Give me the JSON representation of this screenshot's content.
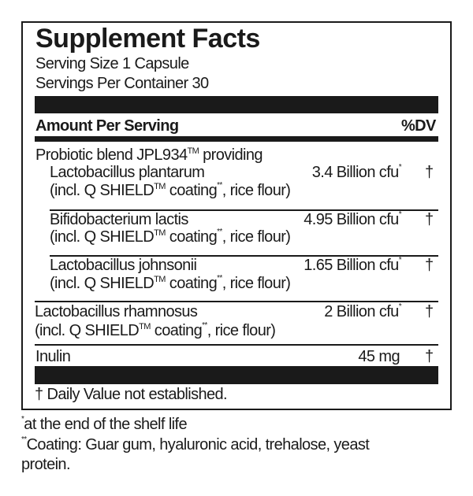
{
  "title": "Supplement Facts",
  "serving_size": "Serving Size 1 Capsule",
  "servings_per_container": "Servings Per Container 30",
  "header": {
    "amount": "Amount Per Serving",
    "dv": "%DV"
  },
  "blend": {
    "name": "Probiotic blend JPL934",
    "tm": "TM",
    "suffix": " providing"
  },
  "rows": [
    {
      "name": "Lactobacillus plantarum",
      "amount": "3.4 Billion cfu",
      "amount_mark": "*",
      "dv": "†",
      "sub_a": "(incl. Q SHIELD",
      "sub_tm": "TM",
      "sub_b": " coating",
      "sub_mark": "**",
      "sub_c": ", rice flour)"
    },
    {
      "name": "Bifidobacterium lactis",
      "amount": "4.95 Billion cfu",
      "amount_mark": "*",
      "dv": "†",
      "sub_a": "(incl. Q SHIELD",
      "sub_tm": "TM",
      "sub_b": " coating",
      "sub_mark": "**",
      "sub_c": ", rice flour)"
    },
    {
      "name": "Lactobacillus johnsonii",
      "amount": "1.65 Billion cfu",
      "amount_mark": "*",
      "dv": "†",
      "sub_a": "(incl. Q SHIELD",
      "sub_tm": "TM",
      "sub_b": " coating",
      "sub_mark": "**",
      "sub_c": ", rice flour)"
    },
    {
      "name": "Lactobacillus rhamnosus",
      "amount": "2 Billion cfu",
      "amount_mark": "*",
      "dv": "†",
      "sub_a": "(incl. Q SHIELD",
      "sub_tm": "TM",
      "sub_b": " coating",
      "sub_mark": "**",
      "sub_c": ", rice flour)"
    },
    {
      "name": "Inulin",
      "amount": "45 mg",
      "dv": "†"
    }
  ],
  "dv_note": "† Daily Value not established.",
  "footnotes": [
    {
      "mark": "*",
      "text": "at the end of the shelf life"
    },
    {
      "mark": "**",
      "text": "Coating: Guar gum, hyaluronic acid, trehalose, yeast",
      "text2": "protein."
    }
  ]
}
